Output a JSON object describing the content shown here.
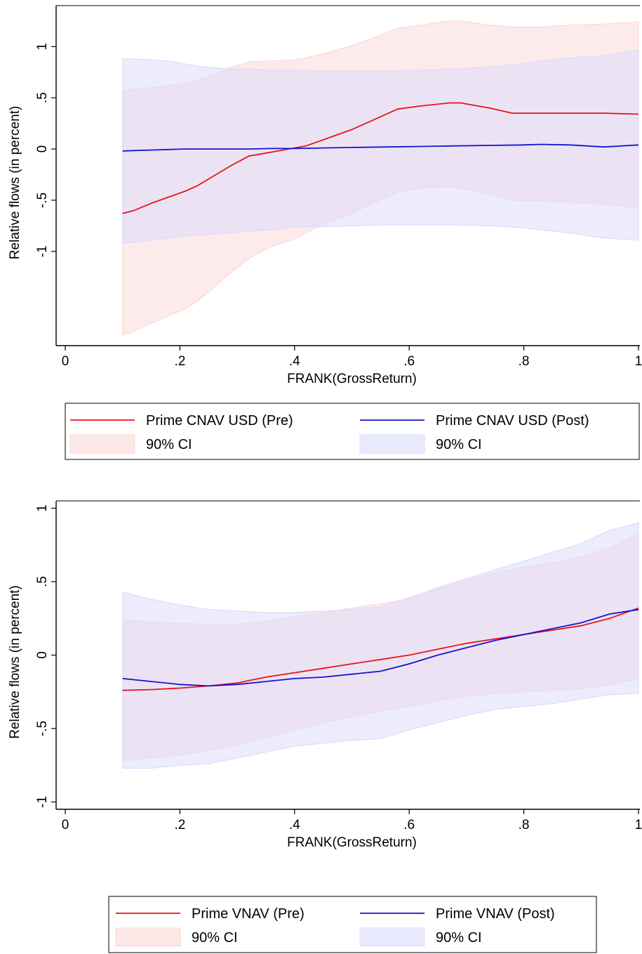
{
  "colors": {
    "pre": "#e8141c",
    "post": "#1414d0",
    "pre_ci": "#fbd9d9",
    "post_ci": "#dcdcfb",
    "axis": "#000000"
  },
  "chart_data": [
    {
      "type": "line",
      "xlabel": "FRANK(GrossReturn)",
      "ylabel": "Relative flows (in percent)",
      "xlim": [
        0,
        1
      ],
      "ylim": [
        -1.92,
        1.4
      ],
      "xticks": [
        0,
        0.2,
        0.4,
        0.6,
        0.8,
        1
      ],
      "xtick_labels": [
        "0",
        ".2",
        ".4",
        ".6",
        ".8",
        "1"
      ],
      "yticks": [
        -1,
        -0.5,
        0,
        0.5,
        1
      ],
      "ytick_labels": [
        "-1",
        "-.5",
        "0",
        ".5",
        "1"
      ],
      "grid": false,
      "legend_position": "below",
      "legend": [
        {
          "label": "Prime CNAV USD (Pre)",
          "kind": "line",
          "series": "pre"
        },
        {
          "label": "Prime CNAV USD (Post)",
          "kind": "line",
          "series": "post"
        },
        {
          "label": "90% CI",
          "kind": "area",
          "series": "pre"
        },
        {
          "label": "90% CI",
          "kind": "area",
          "series": "post"
        }
      ],
      "series": [
        {
          "key": "pre",
          "x": [
            0.1,
            0.12,
            0.15,
            0.18,
            0.21,
            0.23,
            0.26,
            0.29,
            0.32,
            0.36,
            0.4,
            0.42,
            0.45,
            0.5,
            0.54,
            0.58,
            0.62,
            0.67,
            0.69,
            0.74,
            0.78,
            0.83,
            0.88,
            0.94,
            1.0
          ],
          "y": [
            -0.63,
            -0.6,
            -0.53,
            -0.47,
            -0.41,
            -0.36,
            -0.26,
            -0.16,
            -0.07,
            -0.03,
            0.01,
            0.03,
            0.09,
            0.19,
            0.29,
            0.39,
            0.42,
            0.45,
            0.45,
            0.4,
            0.35,
            0.35,
            0.35,
            0.35,
            0.34
          ],
          "lower": [
            -1.82,
            -1.78,
            -1.7,
            -1.63,
            -1.56,
            -1.49,
            -1.35,
            -1.2,
            -1.07,
            -0.95,
            -0.88,
            -0.82,
            -0.73,
            -0.63,
            -0.52,
            -0.42,
            -0.38,
            -0.37,
            -0.38,
            -0.44,
            -0.5,
            -0.51,
            -0.52,
            -0.54,
            -0.58
          ],
          "upper": [
            0.57,
            0.58,
            0.6,
            0.62,
            0.64,
            0.67,
            0.73,
            0.8,
            0.85,
            0.86,
            0.87,
            0.89,
            0.93,
            1.01,
            1.09,
            1.18,
            1.21,
            1.25,
            1.25,
            1.21,
            1.19,
            1.19,
            1.21,
            1.22,
            1.24
          ]
        },
        {
          "key": "post",
          "x": [
            0.1,
            0.12,
            0.15,
            0.18,
            0.21,
            0.23,
            0.26,
            0.29,
            0.32,
            0.36,
            0.4,
            0.45,
            0.5,
            0.56,
            0.62,
            0.68,
            0.74,
            0.8,
            0.83,
            0.88,
            0.94,
            1.0
          ],
          "y": [
            -0.02,
            -0.015,
            -0.01,
            -0.005,
            0.0,
            0.0,
            0.0,
            0.0,
            0.0,
            0.005,
            0.005,
            0.01,
            0.015,
            0.02,
            0.025,
            0.03,
            0.035,
            0.04,
            0.045,
            0.04,
            0.02,
            0.04
          ],
          "lower": [
            -0.92,
            -0.91,
            -0.89,
            -0.87,
            -0.85,
            -0.84,
            -0.83,
            -0.82,
            -0.8,
            -0.79,
            -0.76,
            -0.76,
            -0.75,
            -0.74,
            -0.74,
            -0.74,
            -0.75,
            -0.77,
            -0.79,
            -0.82,
            -0.87,
            -0.89
          ],
          "upper": [
            0.88,
            0.88,
            0.87,
            0.86,
            0.83,
            0.81,
            0.79,
            0.78,
            0.78,
            0.77,
            0.77,
            0.76,
            0.76,
            0.76,
            0.77,
            0.78,
            0.8,
            0.83,
            0.86,
            0.89,
            0.91,
            0.97
          ]
        }
      ]
    },
    {
      "type": "line",
      "xlabel": "FRANK(GrossReturn)",
      "ylabel": "Relative flows (in percent)",
      "xlim": [
        0,
        1
      ],
      "ylim": [
        -1.05,
        1.05
      ],
      "xticks": [
        0,
        0.2,
        0.4,
        0.6,
        0.8,
        1
      ],
      "xtick_labels": [
        "0",
        ".2",
        ".4",
        ".6",
        ".8",
        "1"
      ],
      "yticks": [
        -1,
        -0.5,
        0,
        0.5,
        1
      ],
      "ytick_labels": [
        "-1",
        "-.5",
        "0",
        ".5",
        "1"
      ],
      "grid": false,
      "legend_position": "below",
      "legend": [
        {
          "label": "Prime VNAV (Pre)",
          "kind": "line",
          "series": "pre"
        },
        {
          "label": "Prime VNAV (Post)",
          "kind": "line",
          "series": "post"
        },
        {
          "label": "90% CI",
          "kind": "area",
          "series": "pre"
        },
        {
          "label": "90% CI",
          "kind": "area",
          "series": "post"
        }
      ],
      "series": [
        {
          "key": "pre",
          "x": [
            0.1,
            0.15,
            0.2,
            0.25,
            0.3,
            0.35,
            0.4,
            0.45,
            0.5,
            0.55,
            0.6,
            0.65,
            0.7,
            0.75,
            0.8,
            0.85,
            0.9,
            0.95,
            1.0
          ],
          "y": [
            -0.24,
            -0.235,
            -0.225,
            -0.21,
            -0.19,
            -0.15,
            -0.12,
            -0.09,
            -0.06,
            -0.03,
            0.0,
            0.04,
            0.08,
            0.11,
            0.14,
            0.17,
            0.2,
            0.25,
            0.32
          ],
          "lower": [
            -0.72,
            -0.7,
            -0.68,
            -0.65,
            -0.61,
            -0.56,
            -0.51,
            -0.46,
            -0.42,
            -0.38,
            -0.35,
            -0.31,
            -0.28,
            -0.26,
            -0.25,
            -0.24,
            -0.23,
            -0.2,
            -0.16
          ],
          "upper": [
            0.24,
            0.225,
            0.215,
            0.21,
            0.21,
            0.23,
            0.26,
            0.29,
            0.32,
            0.35,
            0.38,
            0.45,
            0.51,
            0.56,
            0.6,
            0.63,
            0.67,
            0.73,
            0.83
          ]
        },
        {
          "key": "post",
          "x": [
            0.1,
            0.15,
            0.2,
            0.25,
            0.3,
            0.35,
            0.4,
            0.45,
            0.5,
            0.55,
            0.6,
            0.65,
            0.7,
            0.75,
            0.8,
            0.85,
            0.9,
            0.95,
            1.0
          ],
          "y": [
            -0.16,
            -0.18,
            -0.2,
            -0.21,
            -0.2,
            -0.18,
            -0.16,
            -0.15,
            -0.13,
            -0.11,
            -0.06,
            0.0,
            0.05,
            0.1,
            0.14,
            0.18,
            0.22,
            0.28,
            0.31
          ],
          "lower": [
            -0.77,
            -0.77,
            -0.75,
            -0.74,
            -0.7,
            -0.66,
            -0.62,
            -0.6,
            -0.58,
            -0.57,
            -0.51,
            -0.46,
            -0.41,
            -0.37,
            -0.35,
            -0.33,
            -0.3,
            -0.27,
            -0.26
          ],
          "upper": [
            0.43,
            0.38,
            0.34,
            0.31,
            0.3,
            0.29,
            0.29,
            0.3,
            0.31,
            0.33,
            0.39,
            0.46,
            0.52,
            0.58,
            0.64,
            0.7,
            0.76,
            0.85,
            0.9
          ]
        }
      ]
    }
  ]
}
